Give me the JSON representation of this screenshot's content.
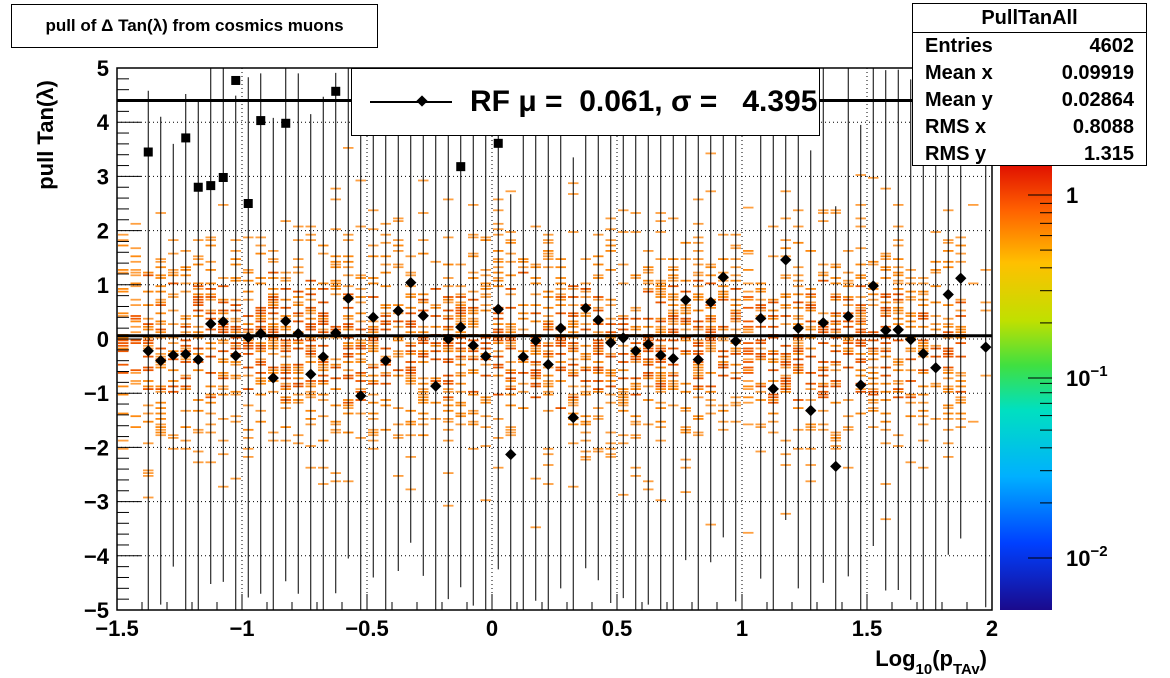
{
  "title": "pull of Δ Tan(λ) from cosmics muons",
  "stats": {
    "name": "PullTanAll",
    "rows": [
      {
        "label": "Entries",
        "value": "4602"
      },
      {
        "label": "Mean x",
        "value": "0.09919"
      },
      {
        "label": "Mean y",
        "value": "0.02864"
      },
      {
        "label": "RMS x",
        "value": "0.8088"
      },
      {
        "label": "RMS y",
        "value": "1.315"
      }
    ]
  },
  "legend": {
    "text": "RF μ =  0.061, σ =   4.395"
  },
  "colors": {
    "frame": "#000000",
    "fit_line": "#000000",
    "points": "#000000"
  },
  "chart_data": {
    "type": "heatmap",
    "title": "pull of Δ Tan(λ) from cosmics muons",
    "xlabel": "Log10(pTAv)",
    "ylabel": "pull Tan(λ)",
    "xlim": [
      -1.5,
      2
    ],
    "ylim": [
      -5,
      5
    ],
    "x_ticks": [
      "−1.5",
      "−1",
      "−0.5",
      "0",
      "0.5",
      "1",
      "1.5",
      "2"
    ],
    "y_ticks": [
      "−5",
      "−4",
      "−3",
      "−2",
      "−1",
      "0",
      "1",
      "2",
      "3",
      "4",
      "5"
    ],
    "z_scale": "log",
    "z_ticks": [
      "1",
      "10⁻¹",
      "10⁻²"
    ],
    "grid": true,
    "fit_lines": [
      {
        "y": 0.061,
        "x_range": [
          -1.5,
          2
        ]
      },
      {
        "y": 4.4,
        "x_range": [
          -1.5,
          2
        ]
      }
    ],
    "profile": [
      {
        "x": -1.375,
        "y": -0.22,
        "err": 4.8
      },
      {
        "x": -1.325,
        "y": -0.4,
        "err": 4.5
      },
      {
        "x": -1.275,
        "y": -0.3,
        "err": 3.9
      },
      {
        "x": -1.225,
        "y": -0.28,
        "err": 4.8
      },
      {
        "x": -1.175,
        "y": -0.38,
        "err": 4.8
      },
      {
        "x": -1.125,
        "y": 0.28,
        "err": 4.8
      },
      {
        "x": -1.075,
        "y": 0.32,
        "err": 4.8
      },
      {
        "x": -1.025,
        "y": -0.31,
        "err": 4.8
      },
      {
        "x": -0.975,
        "y": 0.03,
        "err": 4.8
      },
      {
        "x": -0.925,
        "y": 0.1,
        "err": 4.8
      },
      {
        "x": -0.875,
        "y": -0.72,
        "err": 4.8
      },
      {
        "x": -0.825,
        "y": 0.33,
        "err": 4.8
      },
      {
        "x": -0.775,
        "y": 0.1,
        "err": 4.8
      },
      {
        "x": -0.725,
        "y": -0.65,
        "err": 4.8
      },
      {
        "x": -0.675,
        "y": -0.33,
        "err": 4.8
      },
      {
        "x": -0.625,
        "y": 0.11,
        "err": 4.8
      },
      {
        "x": -0.575,
        "y": 0.75,
        "err": 4.8
      },
      {
        "x": -0.525,
        "y": -1.05,
        "err": 4.8
      },
      {
        "x": -0.475,
        "y": 0.4,
        "err": 4.8
      },
      {
        "x": -0.425,
        "y": -0.4,
        "err": 4.8
      },
      {
        "x": -0.375,
        "y": 0.52,
        "err": 4.8
      },
      {
        "x": -0.325,
        "y": 1.04,
        "err": 4.8
      },
      {
        "x": -0.275,
        "y": 0.43,
        "err": 4.8
      },
      {
        "x": -0.225,
        "y": -0.87,
        "err": 4.8
      },
      {
        "x": -0.175,
        "y": 0.0,
        "err": 4.8
      },
      {
        "x": -0.125,
        "y": 0.22,
        "err": 4.8
      },
      {
        "x": -0.075,
        "y": -0.12,
        "err": 4.8
      },
      {
        "x": -0.025,
        "y": -0.32,
        "err": 4.8
      },
      {
        "x": 0.025,
        "y": 0.55,
        "err": 4.8
      },
      {
        "x": 0.075,
        "y": -2.13,
        "err": 4.8
      },
      {
        "x": 0.125,
        "y": -0.33,
        "err": 4.8
      },
      {
        "x": 0.175,
        "y": -0.03,
        "err": 4.8
      },
      {
        "x": 0.225,
        "y": -0.47,
        "err": 4.8
      },
      {
        "x": 0.275,
        "y": 0.2,
        "err": 4.8
      },
      {
        "x": 0.325,
        "y": -1.45,
        "err": 4.8
      },
      {
        "x": 0.375,
        "y": 0.57,
        "err": 4.8
      },
      {
        "x": 0.425,
        "y": 0.35,
        "err": 4.8
      },
      {
        "x": 0.475,
        "y": -0.07,
        "err": 4.8
      },
      {
        "x": 0.525,
        "y": 0.02,
        "err": 4.8
      },
      {
        "x": 0.575,
        "y": -0.22,
        "err": 4.8
      },
      {
        "x": 0.625,
        "y": -0.1,
        "err": 4.8
      },
      {
        "x": 0.675,
        "y": -0.3,
        "err": 4.8
      },
      {
        "x": 0.725,
        "y": -0.36,
        "err": 4.8
      },
      {
        "x": 0.775,
        "y": 0.72,
        "err": 4.8
      },
      {
        "x": 0.825,
        "y": -0.38,
        "err": 4.8
      },
      {
        "x": 0.875,
        "y": 0.68,
        "err": 4.8
      },
      {
        "x": 0.925,
        "y": 1.14,
        "err": 4.8
      },
      {
        "x": 0.975,
        "y": -0.04,
        "err": 4.8
      },
      {
        "x": 1.075,
        "y": 0.38,
        "err": 4.8
      },
      {
        "x": 1.125,
        "y": -0.92,
        "err": 4.8
      },
      {
        "x": 1.175,
        "y": 1.46,
        "err": 4.8
      },
      {
        "x": 1.225,
        "y": 0.2,
        "err": 4.8
      },
      {
        "x": 1.275,
        "y": -1.32,
        "err": 4.8
      },
      {
        "x": 1.325,
        "y": 0.3,
        "err": 4.8
      },
      {
        "x": 1.375,
        "y": -2.35,
        "err": 4.8
      },
      {
        "x": 1.425,
        "y": 0.42,
        "err": 4.8
      },
      {
        "x": 1.475,
        "y": -0.85,
        "err": 4.8
      },
      {
        "x": 1.525,
        "y": 0.98,
        "err": 4.8
      },
      {
        "x": 1.575,
        "y": 0.16,
        "err": 4.8
      },
      {
        "x": 1.625,
        "y": 0.17,
        "err": 4.8
      },
      {
        "x": 1.675,
        "y": -0.01,
        "err": 4.8
      },
      {
        "x": 1.725,
        "y": -0.27,
        "err": 4.8
      },
      {
        "x": 1.775,
        "y": -0.53,
        "err": 4.8
      },
      {
        "x": 1.825,
        "y": 0.82,
        "err": 4.8
      },
      {
        "x": 1.875,
        "y": 1.12,
        "err": 4.8
      },
      {
        "x": 1.975,
        "y": -0.15,
        "err": 4.8
      }
    ],
    "outlier_points": [
      {
        "x": -1.375,
        "y": 3.45
      },
      {
        "x": -1.225,
        "y": 3.71
      },
      {
        "x": -1.175,
        "y": 2.8
      },
      {
        "x": -1.125,
        "y": 2.83
      },
      {
        "x": -1.075,
        "y": 2.98
      },
      {
        "x": -1.025,
        "y": 4.77
      },
      {
        "x": -0.975,
        "y": 2.5
      },
      {
        "x": -0.925,
        "y": 4.03
      },
      {
        "x": -0.825,
        "y": 3.98
      },
      {
        "x": -0.625,
        "y": 4.57
      },
      {
        "x": -0.125,
        "y": 3.18
      },
      {
        "x": 0.025,
        "y": 3.61
      }
    ]
  }
}
